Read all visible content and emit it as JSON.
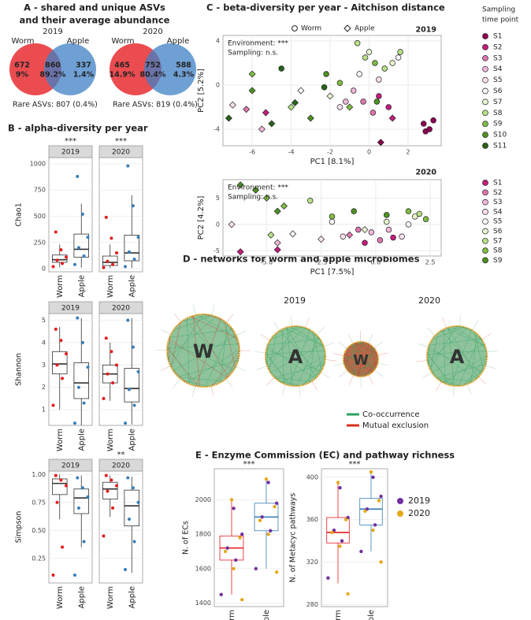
{
  "panels": {
    "A": [
      "A - shared and unique ASVs",
      "and their average abundance"
    ],
    "B": "B - alpha-diversity per year",
    "C": "C - beta-diversity per year - Aitchison distance",
    "E": "E - Enzyme Commission (EC) and pathway richness"
  },
  "sampling_legend_title": [
    "Sampling",
    "time point"
  ],
  "networks": {
    "title": "D - networks for worm and apple microbiomes",
    "years": [
      "2019",
      "2020"
    ],
    "nodes": [
      {
        "label": "W"
      },
      {
        "label": "A"
      },
      {
        "label": "W"
      },
      {
        "label": "A"
      }
    ],
    "legend": [
      {
        "name": "Co-occurrence",
        "color": "#2ca25f"
      },
      {
        "name": "Mutual exclusion",
        "color": "#d7301f"
      }
    ]
  },
  "chart_data": [
    {
      "type": "venn",
      "title": "2019",
      "series": [
        {
          "name": "Worm",
          "color": "#e8383d"
        },
        {
          "name": "Apple",
          "color": "#3f80c6"
        }
      ],
      "values": [
        672,
        860,
        337
      ],
      "percent_labels": [
        "9%",
        "89.2%",
        "1.4%"
      ],
      "note": "Rare ASVs: 807 (0.4%)"
    },
    {
      "type": "venn",
      "title": "2020",
      "series": [
        {
          "name": "Worm",
          "color": "#e8383d"
        },
        {
          "name": "Apple",
          "color": "#3f80c6"
        }
      ],
      "values": [
        465,
        752,
        588
      ],
      "percent_labels": [
        "14.9%",
        "80.4%",
        "4.3%"
      ],
      "note": "Rare ASVs: 819 (0.4%)"
    },
    {
      "type": "box",
      "title": "2019",
      "ylabel": "Chao1",
      "annotation": "***",
      "categories": [
        "Worm",
        "Apple"
      ],
      "ylim": [
        -30,
        1060
      ],
      "yticks": [
        0,
        250,
        500,
        750,
        1000
      ],
      "groups": [
        {
          "color": "#e41a1c",
          "q1": 60,
          "median": 85,
          "q3": 130,
          "whisker_low": 10,
          "whisker_high": 230,
          "points": [
            20,
            50,
            80,
            110,
            180,
            350
          ]
        },
        {
          "color": "#377eb8",
          "q1": 110,
          "median": 185,
          "q3": 330,
          "whisker_low": 10,
          "whisker_high": 620,
          "points": [
            40,
            120,
            200,
            300,
            520,
            880
          ]
        }
      ]
    },
    {
      "type": "box",
      "title": "2020",
      "annotation": "***",
      "categories": [
        "Worm",
        "Apple"
      ],
      "ylim": [
        -30,
        1060
      ],
      "yticks": [
        0,
        250,
        500,
        750,
        1000
      ],
      "groups": [
        {
          "color": "#e41a1c",
          "q1": 30,
          "median": 60,
          "q3": 120,
          "whisker_low": 5,
          "whisker_high": 230,
          "points": [
            10,
            40,
            70,
            150,
            290,
            490
          ]
        },
        {
          "color": "#377eb8",
          "q1": 75,
          "median": 150,
          "q3": 320,
          "whisker_low": 5,
          "whisker_high": 700,
          "points": [
            20,
            90,
            160,
            300,
            600,
            980
          ]
        }
      ]
    },
    {
      "type": "box",
      "title": "2019",
      "ylabel": "Shannon",
      "categories": [
        "Worm",
        "Apple"
      ],
      "ylim": [
        0.3,
        5.3
      ],
      "yticks": [
        1,
        2,
        3,
        4,
        5
      ],
      "groups": [
        {
          "color": "#e41a1c",
          "q1": 2.6,
          "median": 3.05,
          "q3": 3.6,
          "whisker_low": 1.0,
          "whisker_high": 4.7,
          "points": [
            1.2,
            2.4,
            3.0,
            3.5,
            4.1,
            4.6
          ]
        },
        {
          "color": "#377eb8",
          "q1": 1.5,
          "median": 2.2,
          "q3": 3.1,
          "whisker_low": 0.3,
          "whisker_high": 5.1,
          "points": [
            0.4,
            1.3,
            2.0,
            2.9,
            4.0,
            5.1
          ]
        }
      ]
    },
    {
      "type": "box",
      "title": "2020",
      "categories": [
        "Worm",
        "Apple"
      ],
      "ylim": [
        0.3,
        5.3
      ],
      "yticks": [
        1,
        2,
        3,
        4,
        5
      ],
      "groups": [
        {
          "color": "#e41a1c",
          "q1": 2.2,
          "median": 2.6,
          "q3": 3.0,
          "whisker_low": 1.4,
          "whisker_high": 4.0,
          "points": [
            1.5,
            2.2,
            2.6,
            3.0,
            3.6,
            4.2
          ]
        },
        {
          "color": "#377eb8",
          "q1": 1.35,
          "median": 1.95,
          "q3": 2.85,
          "whisker_low": 0.35,
          "whisker_high": 5.1,
          "points": [
            0.4,
            1.2,
            1.9,
            2.7,
            3.8,
            5.0
          ]
        }
      ]
    },
    {
      "type": "box",
      "title": "2019",
      "ylabel": "Simpson",
      "categories": [
        "Worm",
        "Apple"
      ],
      "ylim": [
        0.03,
        1.03
      ],
      "yticks": [
        {
          "value": 0.25,
          "label": "0.25"
        },
        {
          "value": 0.5,
          "label": "0.50"
        },
        {
          "value": 0.75,
          "label": "0.75"
        },
        {
          "value": 1,
          "label": "1.00"
        }
      ],
      "groups": [
        {
          "color": "#e41a1c",
          "q1": 0.82,
          "median": 0.92,
          "q3": 0.96,
          "whisker_low": 0.6,
          "whisker_high": 1.0,
          "points": [
            0.1,
            0.35,
            0.75,
            0.9,
            0.95,
            0.99
          ]
        },
        {
          "color": "#377eb8",
          "q1": 0.65,
          "median": 0.79,
          "q3": 0.87,
          "whisker_low": 0.35,
          "whisker_high": 0.99,
          "points": [
            0.1,
            0.4,
            0.7,
            0.8,
            0.88,
            0.97
          ]
        }
      ]
    },
    {
      "type": "box",
      "title": "2020",
      "annotation": "**",
      "categories": [
        "Worm",
        "Apple"
      ],
      "ylim": [
        0.03,
        1.03
      ],
      "yticks": [
        {
          "value": 0.25,
          "label": "0.25"
        },
        {
          "value": 0.5,
          "label": "0.50"
        },
        {
          "value": 0.75,
          "label": "0.75"
        },
        {
          "value": 1,
          "label": "1.00"
        }
      ],
      "groups": [
        {
          "color": "#e41a1c",
          "q1": 0.78,
          "median": 0.87,
          "q3": 0.93,
          "whisker_low": 0.62,
          "whisker_high": 0.99,
          "points": [
            0.45,
            0.7,
            0.85,
            0.9,
            0.95,
            0.99
          ]
        },
        {
          "color": "#377eb8",
          "q1": 0.54,
          "median": 0.72,
          "q3": 0.86,
          "whisker_low": 0.12,
          "whisker_high": 0.98,
          "points": [
            0.15,
            0.4,
            0.6,
            0.75,
            0.88,
            0.97
          ]
        }
      ]
    },
    {
      "type": "scatter",
      "title": "2019",
      "xlabel": "PC1   [8.1%]",
      "ylabel": "PC2   [5.2%]",
      "shape_legend": [
        "Worm",
        "Apple"
      ],
      "annotations": [
        "Environment: ***",
        "Sampling: n.s."
      ],
      "xlim": [
        -7.5,
        3.7
      ],
      "ylim": [
        -5.5,
        4.5
      ],
      "xticks": [
        -6,
        -4,
        -2,
        0,
        2
      ],
      "yticks": [
        -4,
        0,
        4
      ],
      "grid": true,
      "series": [
        {
          "name": "S1",
          "color": "#8e0152",
          "worm_x": [
            2.8,
            3.1,
            3.3,
            2.9
          ],
          "worm_y": [
            -3.5,
            -4,
            -3.2,
            -4.2
          ],
          "apple_x": [
            0.6
          ],
          "apple_y": [
            -5.2
          ]
        },
        {
          "name": "S2",
          "color": "#c51b7d",
          "worm_x": [
            0.5,
            1.0
          ],
          "worm_y": [
            -1,
            -2
          ],
          "apple_x": [
            -5.3,
            1.2
          ],
          "apple_y": [
            -2.5,
            -3
          ]
        },
        {
          "name": "S3",
          "color": "#de77ae",
          "worm_x": [
            -0.3,
            0.2
          ],
          "worm_y": [
            -1.5,
            -2.5
          ],
          "apple_x": [
            -6.3
          ],
          "apple_y": [
            -2.2
          ]
        },
        {
          "name": "S4",
          "color": "#f1b6da",
          "worm_x": [
            -1.2,
            -0.8
          ],
          "worm_y": [
            -1.5,
            -0.5
          ],
          "apple_x": [
            -5.5
          ],
          "apple_y": [
            -4
          ]
        },
        {
          "name": "S5",
          "color": "#fde0ef",
          "worm_x": [
            -1.5,
            0.5
          ],
          "worm_y": [
            -2,
            0.5
          ],
          "apple_x": [
            -7
          ],
          "apple_y": [
            -1.8
          ]
        },
        {
          "name": "S6",
          "color": "#f7f7f7",
          "worm_x": [
            -0.5,
            1.5
          ],
          "worm_y": [
            1,
            2.5
          ],
          "apple_x": [
            -3.5
          ],
          "apple_y": [
            -0.5
          ]
        },
        {
          "name": "S7",
          "color": "#e6f5d0",
          "worm_x": [
            0,
            1.2
          ],
          "worm_y": [
            3,
            2
          ],
          "apple_x": [
            -2
          ],
          "apple_y": [
            -1
          ]
        },
        {
          "name": "S8",
          "color": "#b8e186",
          "worm_x": [
            -0.2,
            0.8,
            -0.6,
            1.6
          ],
          "worm_y": [
            2.5,
            1.5,
            3.8,
            3
          ],
          "apple_x": [
            -4
          ],
          "apple_y": [
            -2
          ]
        },
        {
          "name": "S9",
          "color": "#7fbc41",
          "worm_x": [
            -1.5,
            0.3
          ],
          "worm_y": [
            0.2,
            2
          ],
          "apple_x": [
            -6,
            -1
          ],
          "apple_y": [
            1,
            -2
          ]
        },
        {
          "name": "S10",
          "color": "#4d9221",
          "worm_x": [
            -2.2,
            0.4
          ],
          "worm_y": [
            1,
            -1.5
          ],
          "apple_x": [
            -6,
            -3
          ],
          "apple_y": [
            -0.5,
            -3
          ]
        },
        {
          "name": "S11",
          "color": "#276419",
          "worm_x": [
            -2.3,
            -4.5
          ],
          "worm_y": [
            -0.2,
            1.5
          ],
          "apple_x": [
            -5,
            -7.2,
            -3.8
          ],
          "apple_y": [
            -3.5,
            -3,
            -1.6
          ]
        }
      ]
    },
    {
      "type": "scatter",
      "title": "2020",
      "xlabel": "PC1   [7.5%]",
      "ylabel": "PC2   [4.2%]",
      "annotations": [
        "Environment: ***",
        "Sampling: n.s."
      ],
      "xlim": [
        -7,
        3
      ],
      "ylim": [
        -6,
        8.5
      ],
      "xticks": [
        {
          "value": -5,
          "label": "-5.0"
        },
        {
          "value": -2.5,
          "label": "-2.5"
        },
        {
          "value": 0,
          "label": "0.0"
        },
        {
          "value": 2.5,
          "label": "2.5"
        }
      ],
      "yticks": [
        -5,
        0,
        5
      ],
      "grid": true,
      "series": [
        {
          "name": "S1",
          "color": "#c51b7d",
          "worm_x": [
            0.8,
            -0.5
          ],
          "worm_y": [
            -2.5,
            -3.5
          ],
          "apple_x": [
            -6.2,
            -4.5
          ],
          "apple_y": [
            -5.2,
            -4.8
          ]
        },
        {
          "name": "S2",
          "color": "#de77ae",
          "worm_x": [
            -0.8,
            0.2
          ],
          "worm_y": [
            -1,
            -3
          ],
          "apple_x": [
            -1.2
          ],
          "apple_y": [
            -2
          ]
        },
        {
          "name": "S3",
          "color": "#f1b6da",
          "worm_x": [
            -0.2,
            0.6
          ],
          "worm_y": [
            -1.5,
            -1
          ],
          "apple_x": [
            -4.5
          ],
          "apple_y": [
            -3.5
          ]
        },
        {
          "name": "S4",
          "color": "#fde0ef",
          "worm_x": [
            1.2,
            -1.5
          ],
          "worm_y": [
            -2.3,
            -2.3
          ],
          "apple_x": [
            -2.5,
            -6.6
          ],
          "apple_y": [
            -2.8,
            0
          ]
        },
        {
          "name": "S5",
          "color": "#f7f7f7",
          "worm_x": [
            1.5,
            -2
          ],
          "worm_y": [
            0,
            0.5
          ],
          "apple_x": [
            -3.8
          ],
          "apple_y": [
            -1.8
          ]
        },
        {
          "name": "S6",
          "color": "#e6f5d0",
          "worm_x": [
            1.8,
            0.5
          ],
          "worm_y": [
            1.5,
            0.5
          ],
          "apple_x": [
            -0.5
          ],
          "apple_y": [
            -1
          ]
        },
        {
          "name": "S7",
          "color": "#b8e186",
          "worm_x": [
            2,
            -3
          ],
          "worm_y": [
            2,
            4.5
          ],
          "apple_x": [
            -4.8
          ],
          "apple_y": [
            -2
          ]
        },
        {
          "name": "S8",
          "color": "#7fbc41",
          "worm_x": [
            1.5,
            2.3,
            -2
          ],
          "worm_y": [
            2.5,
            1,
            1.5
          ],
          "apple_x": [
            -5,
            -4.2
          ],
          "apple_y": [
            5,
            3.5
          ]
        },
        {
          "name": "S9",
          "color": "#4d9221",
          "worm_x": [
            0.5,
            -1
          ],
          "worm_y": [
            1.8,
            2.5
          ],
          "apple_x": [
            -6.2,
            -5.5,
            -4.5
          ],
          "apple_y": [
            7.5,
            6.5,
            2.5
          ]
        }
      ]
    },
    {
      "type": "box",
      "ylabel": "N. of ECs",
      "annotation": "***",
      "categories": [
        "Worm",
        "Apple"
      ],
      "ylim": [
        1380,
        2180
      ],
      "yticks": [
        1400,
        1600,
        1800,
        2000
      ],
      "groups": [
        {
          "color": "#e41a1c",
          "q1": 1650,
          "median": 1720,
          "q3": 1790,
          "whisker_low": 1450,
          "whisker_high": 1990
        },
        {
          "color": "#377eb8",
          "q1": 1820,
          "median": 1900,
          "q3": 1980,
          "whisker_low": 1600,
          "whisker_high": 2120
        }
      ],
      "series": [
        {
          "name": "2019",
          "color": "#7030a0",
          "values": [
            [
              1450,
              1650,
              1720,
              1800,
              1950
            ],
            [
              1600,
              1820,
              1900,
              1980,
              2100
            ]
          ]
        },
        {
          "name": "2020",
          "color": "#e6a817",
          "values": [
            [
              1420,
              1600,
              1700,
              1780,
              2000
            ],
            [
              1580,
              1800,
              1880,
              1960,
              2120
            ]
          ]
        }
      ]
    },
    {
      "type": "box",
      "ylabel": "N. of Metacyc pathways",
      "annotation": "***",
      "categories": [
        "Worm",
        "Apple"
      ],
      "ylim": [
        278,
        408
      ],
      "yticks": [
        280,
        320,
        360,
        400
      ],
      "legend": "right",
      "groups": [
        {
          "color": "#e41a1c",
          "q1": 338,
          "median": 348,
          "q3": 362,
          "whisker_low": 300,
          "whisker_high": 395
        },
        {
          "color": "#377eb8",
          "q1": 355,
          "median": 370,
          "q3": 380,
          "whisker_low": 330,
          "whisker_high": 405
        }
      ],
      "series": [
        {
          "name": "2019",
          "color": "#7030a0",
          "values": [
            [
              305,
              340,
              350,
              362,
              390
            ],
            [
              330,
              355,
              370,
              382,
              400
            ]
          ]
        },
        {
          "name": "2020",
          "color": "#e6a817",
          "values": [
            [
              290,
              335,
              348,
              360,
              395
            ],
            [
              320,
              350,
              368,
              378,
              405
            ]
          ]
        }
      ]
    }
  ]
}
